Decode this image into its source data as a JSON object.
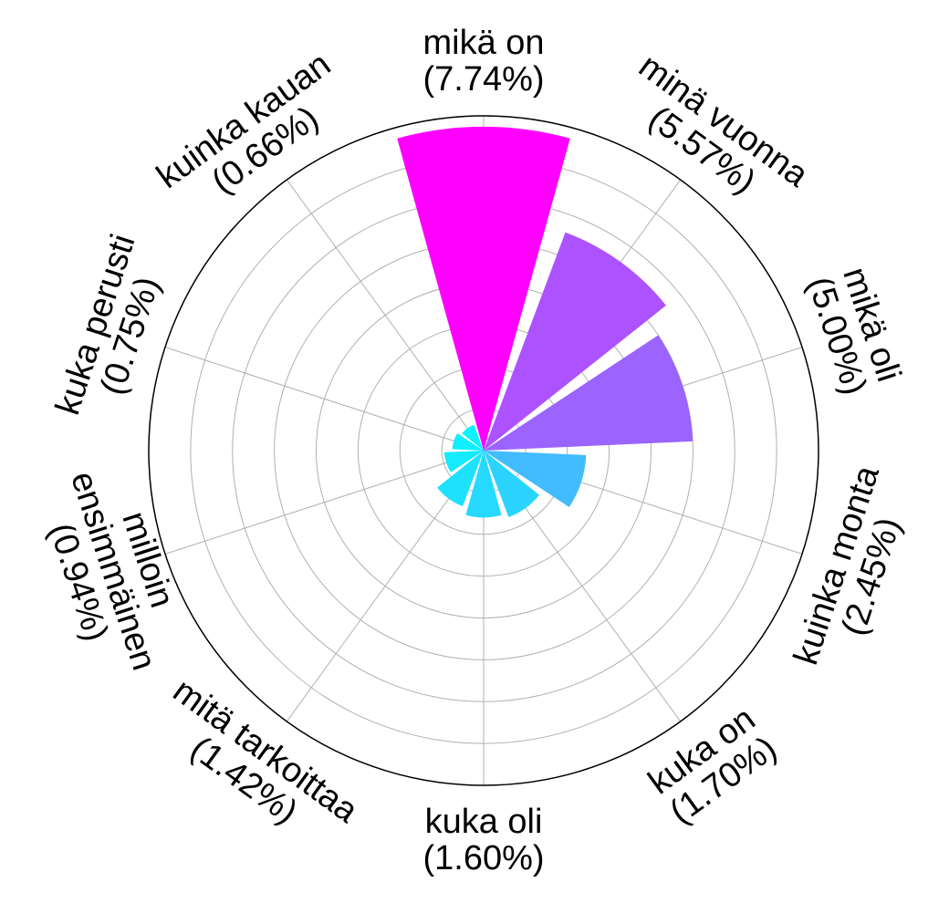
{
  "chart_data": {
    "type": "bar",
    "projection": "polar",
    "categories": [
      "mikä on",
      "minä vuonna",
      "mikä oli",
      "kuinka monta",
      "kuka on",
      "kuka oli",
      "mitä tarkoittaa",
      "milloin ensimmäinen",
      "kuka perusti",
      "kuinka kauan"
    ],
    "values": [
      7.74,
      5.57,
      5.0,
      2.45,
      1.7,
      1.6,
      1.42,
      0.94,
      0.75,
      0.66
    ],
    "labels": [
      [
        "mikä on",
        "(7.74%)"
      ],
      [
        "minä vuonna",
        "(5.57%)"
      ],
      [
        "mikä oli",
        "(5.00%)"
      ],
      [
        "kuinka monta",
        "(2.45%)"
      ],
      [
        "kuka on",
        "(1.70%)"
      ],
      [
        "kuka oli",
        "(1.60%)"
      ],
      [
        "mitä tarkoittaa",
        "(1.42%)"
      ],
      [
        "milloin",
        "ensimmäinen",
        "(0.94%)"
      ],
      [
        "kuka perusti",
        "(0.75%)"
      ],
      [
        "kuinka kauan",
        "(0.66%)"
      ]
    ],
    "colors": [
      "#ff00ff",
      "#ac53ff",
      "#9b64ff",
      "#43bcff",
      "#2bd4ff",
      "#26d9ff",
      "#1ee1ff",
      "#14ebff",
      "#10efff",
      "#0df2ff"
    ],
    "rmax": 8.0,
    "direction": "clockwise",
    "start": "top",
    "grid": true,
    "title": "",
    "xlabel": "",
    "ylabel": ""
  }
}
